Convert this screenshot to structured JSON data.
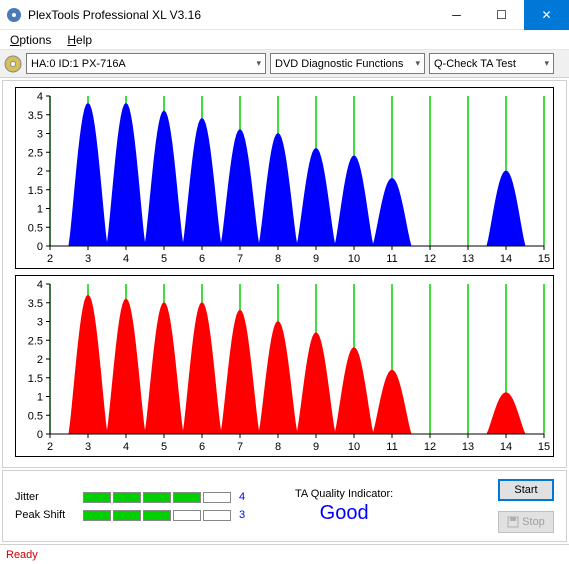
{
  "window": {
    "title": "PlexTools Professional XL V3.16"
  },
  "menu": {
    "options": "Options",
    "help": "Help"
  },
  "toolbar": {
    "device": "HA:0 ID:1   PX-716A",
    "functions": "DVD Diagnostic Functions",
    "test": "Q-Check TA Test"
  },
  "chart": {
    "ylim": [
      0,
      4
    ],
    "yticks": [
      0,
      0.5,
      1,
      1.5,
      2,
      2.5,
      3,
      3.5,
      4
    ],
    "xlim": [
      2,
      15
    ],
    "xticks": [
      2,
      3,
      4,
      5,
      6,
      7,
      8,
      9,
      10,
      11,
      12,
      13,
      14,
      15
    ],
    "background": "#ffffff",
    "border": "#000000",
    "vline_color": "#00d000",
    "axis_color": "#000000",
    "top_color": "#0000ff",
    "bottom_color": "#ff0000",
    "top_series": [
      {
        "c": 3,
        "h": 3.8
      },
      {
        "c": 4,
        "h": 3.8
      },
      {
        "c": 5,
        "h": 3.6
      },
      {
        "c": 6,
        "h": 3.4
      },
      {
        "c": 7,
        "h": 3.1
      },
      {
        "c": 8,
        "h": 3.0
      },
      {
        "c": 9,
        "h": 2.6
      },
      {
        "c": 10,
        "h": 2.4
      },
      {
        "c": 11,
        "h": 1.8
      },
      {
        "c": 14,
        "h": 2.0
      }
    ],
    "bottom_series": [
      {
        "c": 3,
        "h": 3.7
      },
      {
        "c": 4,
        "h": 3.6
      },
      {
        "c": 5,
        "h": 3.5
      },
      {
        "c": 6,
        "h": 3.5
      },
      {
        "c": 7,
        "h": 3.3
      },
      {
        "c": 8,
        "h": 3.0
      },
      {
        "c": 9,
        "h": 2.7
      },
      {
        "c": 10,
        "h": 2.3
      },
      {
        "c": 11,
        "h": 1.7
      },
      {
        "c": 14,
        "h": 1.1
      }
    ]
  },
  "meters": {
    "jitter": {
      "label": "Jitter",
      "filled": 4,
      "total": 5,
      "value": "4"
    },
    "peakshift": {
      "label": "Peak Shift",
      "filled": 3,
      "total": 5,
      "value": "3"
    },
    "bar_filled_color": "#00d000",
    "value_color": "#0000ff"
  },
  "quality": {
    "label": "TA Quality Indicator:",
    "value": "Good",
    "value_color": "#0000ff"
  },
  "buttons": {
    "start": "Start",
    "stop": "Stop"
  },
  "status": {
    "text": "Ready",
    "color": "#cc0000"
  }
}
